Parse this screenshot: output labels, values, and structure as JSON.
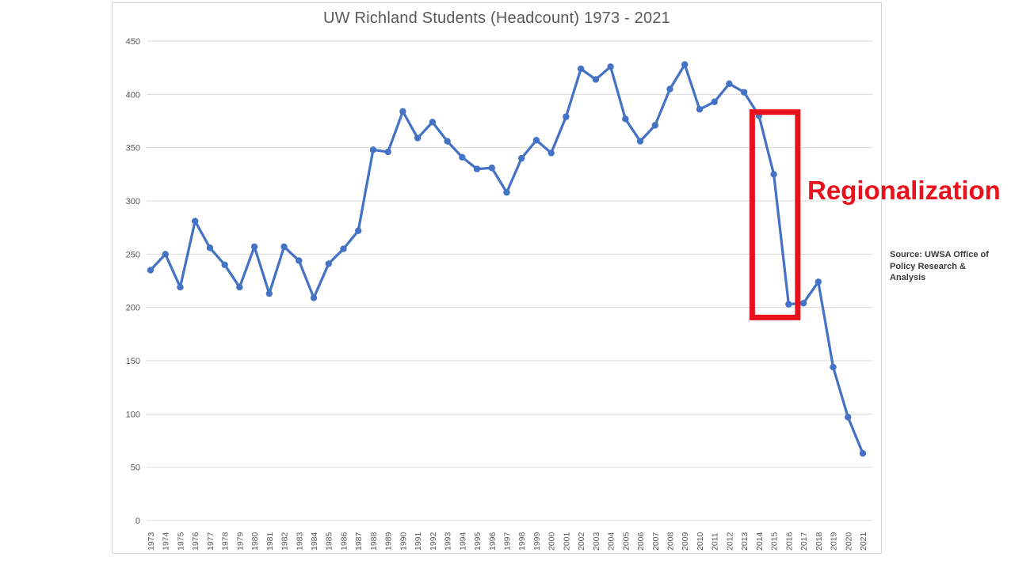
{
  "chart": {
    "title": "UW Richland Students (Headcount) 1973 - 2021",
    "annotation_label": "Regionalization",
    "source_note": "Source: UWSA Office of Policy Research & Analysis"
  },
  "chart_data": {
    "type": "line",
    "title": "UW Richland Students (Headcount) 1973 - 2021",
    "x": [
      1973,
      1974,
      1975,
      1976,
      1977,
      1978,
      1979,
      1980,
      1981,
      1982,
      1983,
      1984,
      1985,
      1986,
      1987,
      1988,
      1989,
      1990,
      1991,
      1992,
      1993,
      1994,
      1995,
      1996,
      1997,
      1998,
      1999,
      2000,
      2001,
      2002,
      2003,
      2004,
      2005,
      2006,
      2007,
      2008,
      2009,
      2010,
      2011,
      2012,
      2013,
      2014,
      2015,
      2016,
      2017,
      2018,
      2019,
      2020,
      2021
    ],
    "values": [
      235,
      250,
      219,
      281,
      256,
      240,
      219,
      257,
      213,
      257,
      244,
      209,
      241,
      255,
      272,
      348,
      346,
      384,
      359,
      374,
      356,
      341,
      330,
      331,
      308,
      340,
      357,
      345,
      379,
      424,
      414,
      426,
      377,
      356,
      371,
      405,
      428,
      386,
      393,
      410,
      402,
      380,
      325,
      203,
      204,
      224,
      144,
      97,
      63
    ],
    "xlabel": "",
    "ylabel": "",
    "ylim": [
      0,
      450
    ],
    "ytick_step": 50,
    "grid": true,
    "legend_position": "none",
    "series_color": "#4472c4",
    "gridline_color": "#d9d9d9",
    "tick_label_color": "#595959",
    "annotations": [
      {
        "type": "box",
        "label": "Regionalization",
        "color": "#e8111c",
        "x_range": [
          2014,
          2016
        ],
        "y_range": [
          188,
          386
        ]
      },
      {
        "type": "text",
        "label": "Source: UWSA Office of Policy Research & Analysis"
      }
    ]
  }
}
